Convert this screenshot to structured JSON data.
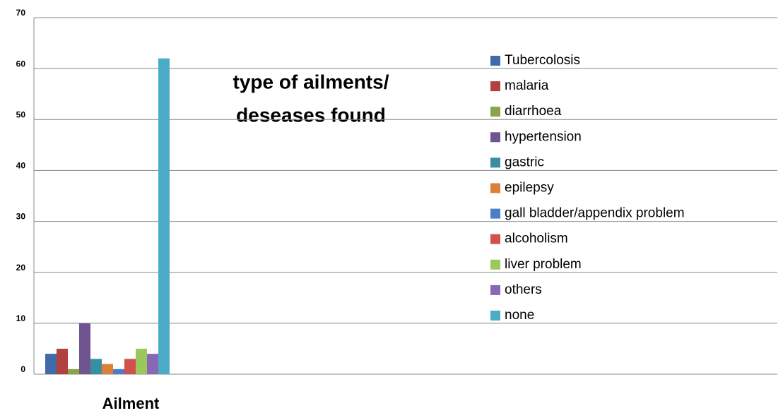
{
  "chart_data": {
    "type": "bar",
    "title": [
      "type of ailments/",
      "deseases found"
    ],
    "categories": [
      "Ailment"
    ],
    "series": [
      {
        "name": "Tubercolosis",
        "color": "#3f6ca8",
        "values": [
          4
        ]
      },
      {
        "name": "malaria",
        "color": "#b0413e",
        "values": [
          5
        ]
      },
      {
        "name": "diarrhoea",
        "color": "#88a548",
        "values": [
          1
        ]
      },
      {
        "name": "hypertension",
        "color": "#6e5590",
        "values": [
          10
        ]
      },
      {
        "name": "gastric",
        "color": "#3a8ea4",
        "values": [
          3
        ]
      },
      {
        "name": "epilepsy",
        "color": "#d9803c",
        "values": [
          2
        ]
      },
      {
        "name": "gall bladder/appendix problem",
        "color": "#4a7fc8",
        "values": [
          1
        ]
      },
      {
        "name": "alcoholism",
        "color": "#d0504d",
        "values": [
          3
        ]
      },
      {
        "name": "liver problem",
        "color": "#9cc75a",
        "values": [
          5
        ]
      },
      {
        "name": "others",
        "color": "#8867b4",
        "values": [
          4
        ]
      },
      {
        "name": "none",
        "color": "#4bacc6",
        "values": [
          62
        ]
      }
    ],
    "ylim": [
      0,
      70
    ],
    "yticks": [
      0,
      10,
      20,
      30,
      40,
      50,
      60,
      70
    ],
    "grid": true,
    "legend": "right"
  }
}
